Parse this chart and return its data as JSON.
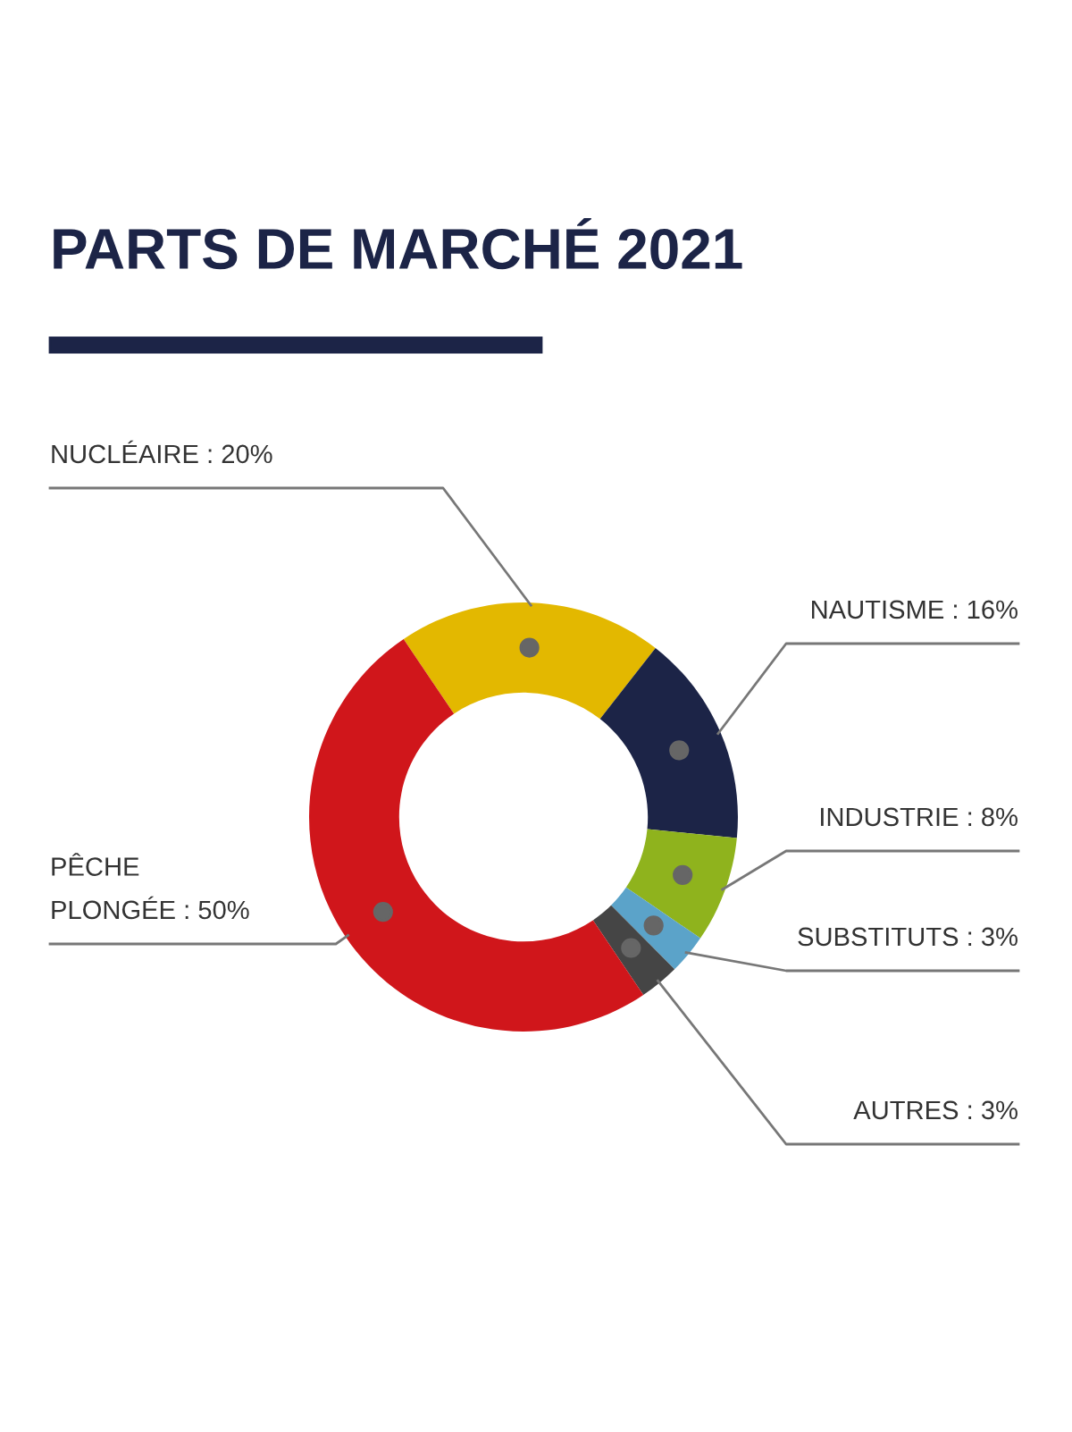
{
  "chart_data": {
    "type": "donut",
    "title": "PARTS DE MARCHÉ 2021",
    "categories": [
      "NUCLÉAIRE : 20%",
      "NAUTISME : 16%",
      "INDUSTRIE : 8%",
      "SUBSTITUTS : 3%",
      "AUTRES : 3%",
      "PÊCHE PLONGÉE : 50%"
    ],
    "values": [
      20,
      16,
      8,
      3,
      3,
      50
    ],
    "colors": [
      "#e3b800",
      "#1c2447",
      "#8fb31d",
      "#5ba3c9",
      "#454545",
      "#d0161b"
    ]
  }
}
